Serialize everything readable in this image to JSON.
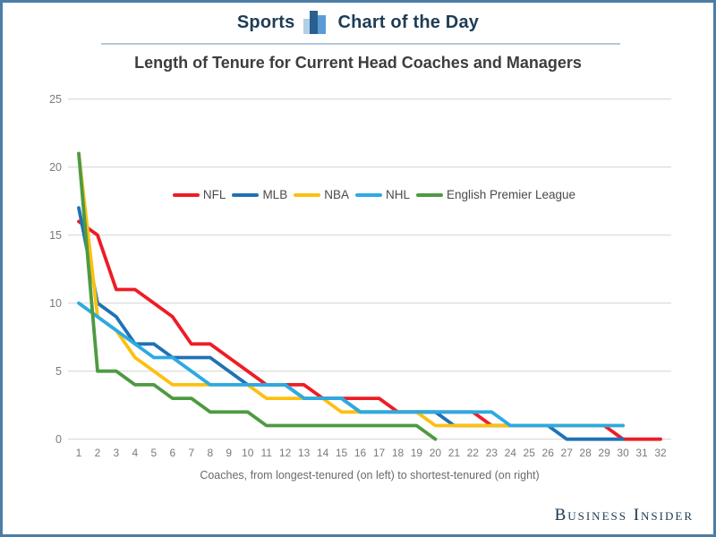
{
  "header": {
    "brand_left": "Sports",
    "brand_right": "Chart of the Day",
    "icon": "bar-chart-icon"
  },
  "title": "Length of Tenure for Current Head Coaches and Managers",
  "footer": {
    "brand": "Business Insider"
  },
  "chart_data": {
    "type": "line",
    "title": "Length of Tenure for Current Head Coaches and Managers",
    "xlabel": "Coaches, from longest-tenured (on left) to shortest-tenured (on right)",
    "ylabel": "",
    "ylim": [
      0,
      25
    ],
    "grid": "horizontal-only",
    "legend_position": "top-center-inside",
    "y_ticks": [
      0,
      5,
      10,
      15,
      20,
      25
    ],
    "y_tick_labels": [
      "0",
      "5",
      "10",
      "15",
      "20",
      "25"
    ],
    "x_tick_labels": [
      "1",
      "2",
      "3",
      "4",
      "5",
      "6",
      "7",
      "8",
      "9",
      "10",
      "11",
      "12",
      "13",
      "14",
      "15",
      "16",
      "17",
      "18",
      "19",
      "20",
      "21",
      "22",
      "23",
      "24",
      "25",
      "26",
      "27",
      "28",
      "29",
      "30",
      "31",
      "32"
    ],
    "series": [
      {
        "name": "NFL",
        "color": "#ee1c25",
        "values": [
          16,
          15,
          11,
          11,
          10,
          9,
          7,
          7,
          6,
          5,
          4,
          4,
          4,
          3,
          3,
          3,
          3,
          2,
          2,
          2,
          2,
          2,
          1,
          1,
          1,
          1,
          1,
          1,
          1,
          0,
          0,
          0
        ]
      },
      {
        "name": "MLB",
        "color": "#2071b5",
        "values": [
          17,
          10,
          9,
          7,
          7,
          6,
          6,
          6,
          5,
          4,
          4,
          4,
          3,
          3,
          3,
          2,
          2,
          2,
          2,
          2,
          1,
          1,
          1,
          1,
          1,
          1,
          0,
          0,
          0,
          0
        ]
      },
      {
        "name": "NBA",
        "color": "#fdc010",
        "values": [
          21,
          9,
          8,
          6,
          5,
          4,
          4,
          4,
          4,
          4,
          3,
          3,
          3,
          3,
          2,
          2,
          2,
          2,
          2,
          1,
          1,
          1,
          1,
          1,
          1,
          1,
          1,
          1,
          1,
          1
        ]
      },
      {
        "name": "NHL",
        "color": "#2caae2",
        "values": [
          10,
          9,
          8,
          7,
          6,
          6,
          5,
          4,
          4,
          4,
          4,
          4,
          3,
          3,
          3,
          2,
          2,
          2,
          2,
          2,
          2,
          2,
          2,
          1,
          1,
          1,
          1,
          1,
          1,
          1
        ]
      },
      {
        "name": "English Premier League",
        "color": "#4e9a42",
        "values": [
          21,
          5,
          5,
          4,
          4,
          3,
          3,
          2,
          2,
          2,
          1,
          1,
          1,
          1,
          1,
          1,
          1,
          1,
          1,
          0
        ]
      }
    ]
  }
}
